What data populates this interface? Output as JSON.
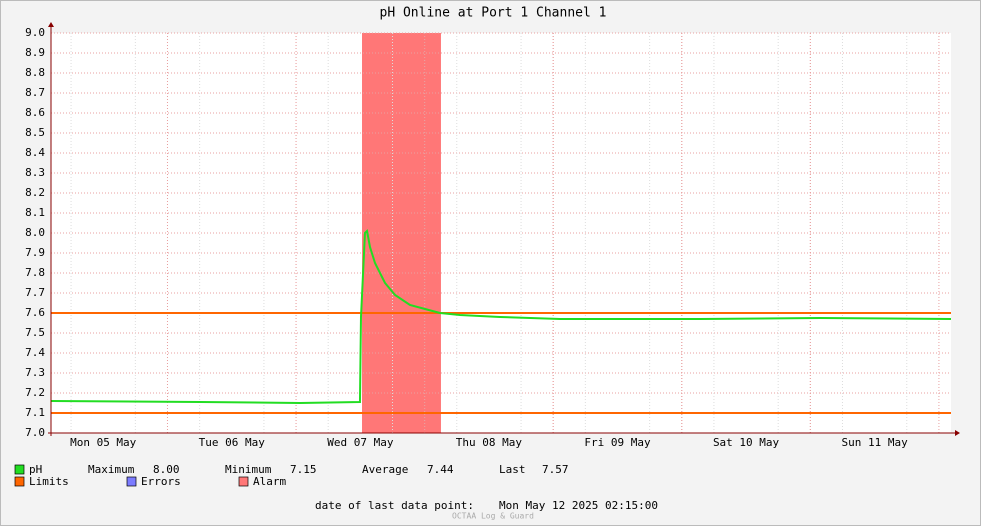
{
  "chart_data": {
    "type": "line",
    "title": "pH Online at Port 1 Channel 1",
    "xlim": [
      0.094,
      7.094
    ],
    "xticks": [
      {
        "value": 0.5,
        "label": "Mon 05 May"
      },
      {
        "value": 1.5,
        "label": "Tue 06 May"
      },
      {
        "value": 2.5,
        "label": "Wed 07 May"
      },
      {
        "value": 3.5,
        "label": "Thu 08 May"
      },
      {
        "value": 4.5,
        "label": "Fri 09 May"
      },
      {
        "value": 5.5,
        "label": "Sat 10 May"
      },
      {
        "value": 6.5,
        "label": "Sun 11 May"
      }
    ],
    "ylim": [
      7,
      9
    ],
    "yticks": [
      {
        "value": 7,
        "label": "7.0"
      },
      7.1,
      7.2,
      7.3,
      7.4,
      7.5,
      7.6,
      7.7,
      7.8,
      7.9,
      {
        "value": 8,
        "label": "8.0"
      },
      8.1,
      8.2,
      8.3,
      8.4,
      8.5,
      8.6,
      8.7,
      8.8,
      8.9,
      {
        "value": 9,
        "label": "9.0"
      }
    ],
    "grid": true,
    "series": [
      {
        "name": "pH",
        "color": "#22dd22",
        "x": [
          0.094,
          1.253,
          2.03,
          2.497,
          2.505,
          2.536,
          2.552,
          2.575,
          2.614,
          2.692,
          2.77,
          2.886,
          3.003,
          3.12,
          3.275,
          3.586,
          4.053,
          5.142,
          6.075,
          7.094
        ],
        "values": [
          7.16,
          7.155,
          7.15,
          7.155,
          7.58,
          8.0,
          8.01,
          7.93,
          7.85,
          7.75,
          7.69,
          7.64,
          7.62,
          7.6,
          7.59,
          7.58,
          7.57,
          7.57,
          7.575,
          7.57
        ]
      }
    ],
    "limits": {
      "name": "Limits",
      "color": "#ff6600",
      "values": [
        7.1,
        7.6
      ]
    },
    "errors": {
      "name": "Errors",
      "color": "#7b7bff"
    },
    "alarm": {
      "name": "Alarm",
      "color": "#ff7777",
      "x": [
        2.513,
        3.127
      ]
    },
    "stats": [
      {
        "label": "Maximum",
        "value": "8.00"
      },
      {
        "label": "Minimum",
        "value": "7.15"
      },
      {
        "label": "Average",
        "value": "7.44"
      },
      {
        "label": "Last",
        "value": "7.57"
      }
    ],
    "last_point_label": "date of last data point:",
    "last_point": "Mon May 12 2025 02:15:00",
    "footer": "OCTAA Log & Guard"
  }
}
